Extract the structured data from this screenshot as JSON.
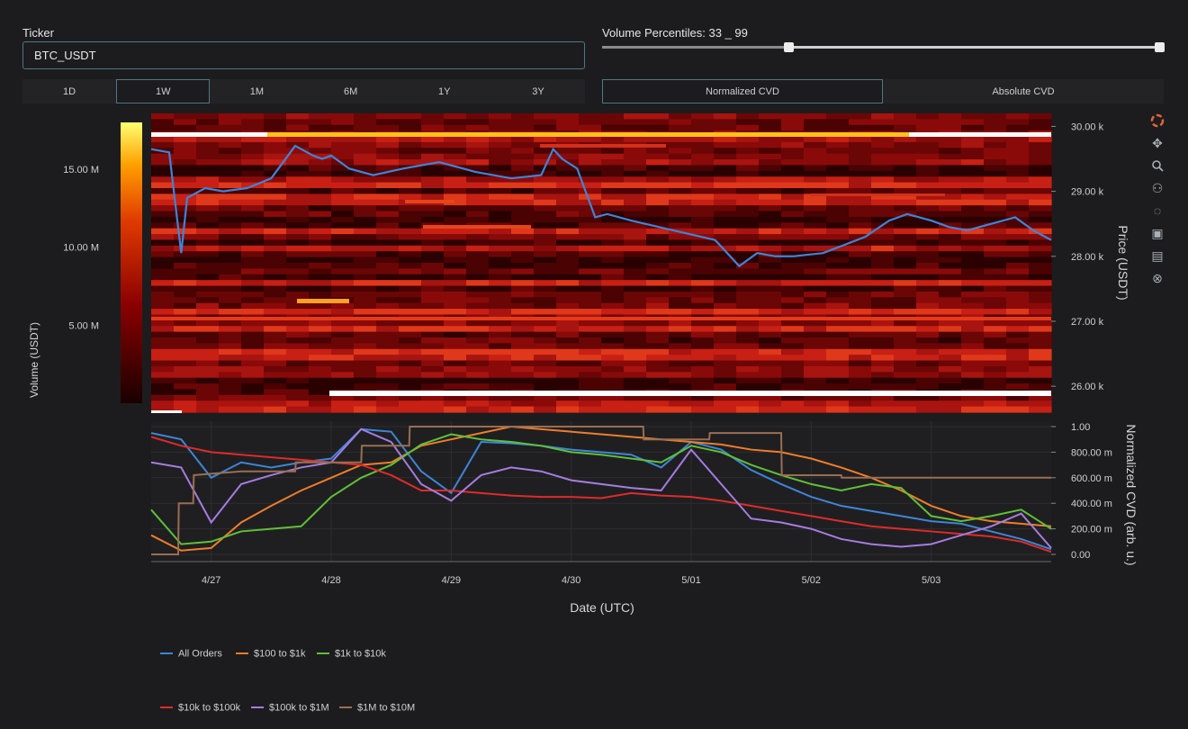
{
  "ticker": {
    "label": "Ticker",
    "value": "BTC_USDT"
  },
  "timeframes": [
    "1D",
    "1W",
    "1M",
    "6M",
    "1Y",
    "3Y"
  ],
  "active_timeframe": "1W",
  "volume_percentiles": {
    "label": "Volume Percentiles: 33 _ 99",
    "low": 33,
    "high": 99
  },
  "modes": [
    "Normalized CVD",
    "Absolute CVD"
  ],
  "active_mode": "Normalized CVD",
  "modebar": [
    "plotly-logo-icon",
    "pan-icon",
    "zoom-icon",
    "reset-axes-icon",
    "autoscale-icon",
    "download-icon",
    "toggle-spikes-icon",
    "hover-compare-icon"
  ],
  "colors": {
    "accent": "#4f7782",
    "background": "#1c1c1e"
  },
  "chart_data": [
    {
      "type": "heatmap",
      "ylabel": "Price (USDT)",
      "colorbar_title": "Volume (USDT)",
      "colorbar_ticks": [
        "5.00 M",
        "10.00 M",
        "15.00 M"
      ],
      "colorbar_range": [
        0,
        18000000
      ],
      "y_ticks": [
        "26.00 k",
        "27.00 k",
        "28.00 k",
        "29.00 k",
        "30.00 k"
      ],
      "ylim": [
        25600,
        30200
      ],
      "price_series": {
        "name": "Price",
        "color": "#3d85d8",
        "x": [
          0,
          0.3,
          0.5,
          0.6,
          0.9,
          1.2,
          1.6,
          2.0,
          2.4,
          2.7,
          2.85,
          3.0,
          3.3,
          3.7,
          4.2,
          4.8,
          5.4,
          6.0,
          6.5,
          6.7,
          6.85,
          7.1,
          7.4,
          7.6,
          8.0,
          8.7,
          9.4,
          9.8,
          10.1,
          10.4,
          10.7,
          11.2,
          11.9,
          12.3,
          12.6,
          13.0,
          13.3,
          13.6,
          14.0,
          14.4,
          14.7,
          15.0
        ],
        "y": [
          29650,
          29600,
          28050,
          28900,
          29050,
          29000,
          29050,
          29200,
          29700,
          29550,
          29500,
          29550,
          29350,
          29250,
          29350,
          29450,
          29300,
          29200,
          29250,
          29650,
          29500,
          29350,
          28600,
          28650,
          28550,
          28400,
          28250,
          27850,
          28050,
          28000,
          28000,
          28050,
          28300,
          28550,
          28650,
          28550,
          28450,
          28400,
          28500,
          28600,
          28400,
          28250
        ]
      }
    },
    {
      "type": "line",
      "xlabel": "Date (UTC)",
      "ylabel": "Normalized CVD (arb. u.)",
      "x_ticks": [
        "4/27",
        "4/28",
        "4/29",
        "4/30",
        "5/01",
        "5/02",
        "5/03"
      ],
      "x_tick_days": [
        1,
        3,
        5,
        7,
        9,
        11,
        13
      ],
      "y_ticks": [
        "0.00",
        "200.00 m",
        "400.00 m",
        "600.00 m",
        "800.00 m",
        "1.00"
      ],
      "ylim": [
        0,
        1
      ],
      "xlim": [
        0,
        15
      ],
      "series": [
        {
          "name": "All Orders",
          "color": "#3d85d8",
          "x": [
            0,
            0.5,
            1,
            1.5,
            2,
            2.5,
            3,
            3.5,
            4,
            4.5,
            5,
            5.5,
            6,
            6.5,
            7,
            7.5,
            8,
            8.5,
            9,
            9.5,
            10,
            10.5,
            11,
            11.5,
            12,
            12.5,
            13,
            13.5,
            14,
            14.5,
            15
          ],
          "y": [
            0.95,
            0.9,
            0.6,
            0.72,
            0.68,
            0.72,
            0.75,
            0.98,
            0.96,
            0.65,
            0.48,
            0.88,
            0.87,
            0.85,
            0.82,
            0.8,
            0.78,
            0.68,
            0.88,
            0.82,
            0.66,
            0.55,
            0.45,
            0.38,
            0.34,
            0.3,
            0.26,
            0.24,
            0.18,
            0.12,
            0.04
          ]
        },
        {
          "name": "$100 to $1k",
          "color": "#ef7d2a",
          "x": [
            0,
            0.5,
            1,
            1.5,
            2,
            2.5,
            3,
            3.5,
            4,
            4.5,
            5,
            5.5,
            6,
            6.5,
            7,
            7.5,
            8,
            8.5,
            9,
            9.5,
            10,
            10.5,
            11,
            11.5,
            12,
            12.5,
            13,
            13.5,
            14,
            14.5,
            15
          ],
          "y": [
            0.15,
            0.03,
            0.05,
            0.25,
            0.38,
            0.5,
            0.6,
            0.7,
            0.72,
            0.85,
            0.9,
            0.95,
            1.0,
            0.98,
            0.96,
            0.94,
            0.92,
            0.9,
            0.88,
            0.86,
            0.82,
            0.8,
            0.75,
            0.68,
            0.6,
            0.5,
            0.38,
            0.3,
            0.26,
            0.24,
            0.22
          ]
        },
        {
          "name": "$1k to $10k",
          "color": "#5fc038",
          "x": [
            0,
            0.5,
            1,
            1.5,
            2,
            2.5,
            3,
            3.5,
            4,
            4.5,
            5,
            5.5,
            6,
            6.5,
            7,
            7.5,
            8,
            8.5,
            9,
            9.5,
            10,
            10.5,
            11,
            11.5,
            12,
            12.5,
            13,
            13.5,
            14,
            14.5,
            15
          ],
          "y": [
            0.35,
            0.08,
            0.1,
            0.18,
            0.2,
            0.22,
            0.45,
            0.6,
            0.7,
            0.86,
            0.94,
            0.9,
            0.88,
            0.85,
            0.8,
            0.78,
            0.75,
            0.72,
            0.85,
            0.8,
            0.7,
            0.62,
            0.55,
            0.5,
            0.55,
            0.52,
            0.3,
            0.26,
            0.3,
            0.35,
            0.2
          ]
        },
        {
          "name": "$10k to $100k",
          "color": "#e02a2a",
          "x": [
            0,
            0.5,
            1,
            1.5,
            2,
            2.5,
            3,
            3.5,
            4,
            4.5,
            5,
            5.5,
            6,
            6.5,
            7,
            7.5,
            8,
            8.5,
            9,
            9.5,
            10,
            10.5,
            11,
            11.5,
            12,
            12.5,
            13,
            13.5,
            14,
            14.5,
            15
          ],
          "y": [
            0.92,
            0.85,
            0.8,
            0.78,
            0.76,
            0.74,
            0.72,
            0.7,
            0.62,
            0.5,
            0.5,
            0.48,
            0.46,
            0.45,
            0.45,
            0.44,
            0.48,
            0.46,
            0.45,
            0.42,
            0.38,
            0.34,
            0.3,
            0.26,
            0.22,
            0.2,
            0.18,
            0.16,
            0.14,
            0.1,
            0.02
          ]
        },
        {
          "name": "$100k to $1M",
          "color": "#a57ce0",
          "x": [
            0,
            0.5,
            1,
            1.5,
            2,
            2.5,
            3,
            3.5,
            4,
            4.5,
            5,
            5.5,
            6,
            6.5,
            7,
            7.5,
            8,
            8.5,
            9,
            9.5,
            10,
            10.5,
            11,
            11.5,
            12,
            12.5,
            13,
            13.5,
            14,
            14.5,
            15
          ],
          "y": [
            0.72,
            0.68,
            0.25,
            0.55,
            0.62,
            0.68,
            0.72,
            0.98,
            0.88,
            0.55,
            0.42,
            0.62,
            0.68,
            0.65,
            0.58,
            0.55,
            0.52,
            0.5,
            0.82,
            0.55,
            0.28,
            0.25,
            0.2,
            0.12,
            0.08,
            0.06,
            0.08,
            0.15,
            0.22,
            0.32,
            0.05
          ]
        },
        {
          "name": "$1M to $10M",
          "color": "#9a6e52",
          "x": [
            0,
            0.45,
            0.46,
            0.7,
            0.71,
            1.5,
            2.4,
            2.41,
            3.5,
            3.51,
            4.3,
            4.31,
            5.0,
            6.0,
            7.0,
            8.2,
            8.21,
            9.3,
            9.31,
            10.5,
            10.51,
            11.5,
            11.51,
            12.5,
            15
          ],
          "y": [
            0.0,
            0.0,
            0.4,
            0.4,
            0.62,
            0.65,
            0.65,
            0.72,
            0.72,
            0.85,
            0.85,
            1.0,
            1.0,
            1.0,
            1.0,
            1.0,
            0.9,
            0.9,
            0.95,
            0.95,
            0.62,
            0.62,
            0.6,
            0.6,
            0.6
          ]
        }
      ]
    }
  ]
}
